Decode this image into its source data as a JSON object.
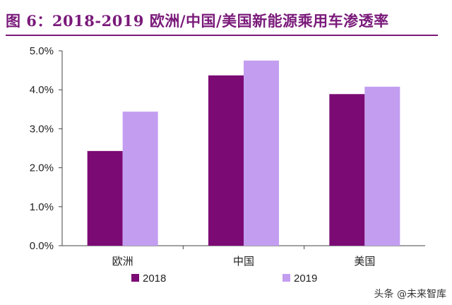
{
  "chart_data": {
    "type": "bar",
    "title": "图 6：2018-2019 欧洲/中国/美国新能源乘用车渗透率",
    "categories": [
      "欧洲",
      "中国",
      "美国"
    ],
    "series": [
      {
        "name": "2018",
        "values": [
          2.43,
          4.37,
          3.89
        ],
        "color": "#7b0a74"
      },
      {
        "name": "2019",
        "values": [
          3.44,
          4.75,
          4.08
        ],
        "color": "#c39ef0"
      }
    ],
    "yticks": [
      "0.0%",
      "1.0%",
      "2.0%",
      "3.0%",
      "4.0%",
      "5.0%"
    ],
    "ylim": [
      0,
      5
    ],
    "legend_position": "bottom"
  },
  "watermark": {
    "text": "头条 @未来智库"
  }
}
